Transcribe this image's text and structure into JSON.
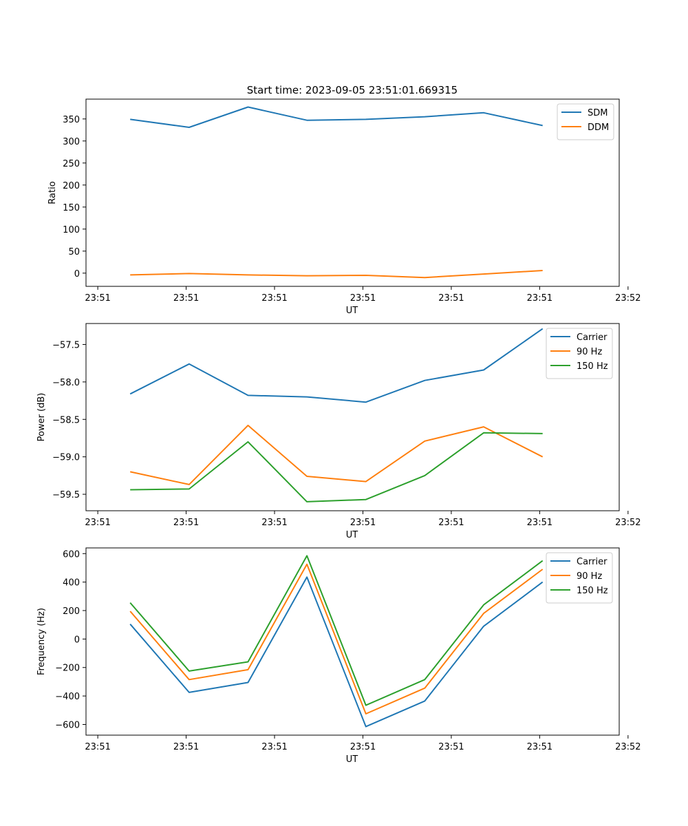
{
  "figure_title": "Start time: 2023-09-05 23:51:01.669315",
  "colors": {
    "c0": "#1f77b4",
    "c1": "#ff7f0e",
    "c2": "#2ca02c"
  },
  "chart_data": [
    {
      "type": "line",
      "title": "Start time: 2023-09-05 23:51:01.669315",
      "xlabel": "UT",
      "ylabel": "Ratio",
      "x": [
        1,
        2,
        3,
        4,
        5,
        6,
        7,
        8
      ],
      "xlim": [
        0.25,
        9.3
      ],
      "xticks": [
        0.45,
        1.95,
        3.45,
        4.95,
        6.45,
        7.95,
        9.45
      ],
      "xtick_labels": [
        "23:51",
        "23:51",
        "23:51",
        "23:51",
        "23:51",
        "23:51",
        "23:52"
      ],
      "ylim": [
        -30,
        395
      ],
      "yticks": [
        0,
        50,
        100,
        150,
        200,
        250,
        300,
        350
      ],
      "ytick_labels": [
        "0",
        "50",
        "100",
        "150",
        "200",
        "250",
        "300",
        "350"
      ],
      "legend": "top-right",
      "series": [
        {
          "name": "SDM",
          "color": "#1f77b4",
          "values": [
            349,
            331,
            377,
            347,
            349,
            355,
            364,
            335
          ]
        },
        {
          "name": "DDM",
          "color": "#ff7f0e",
          "values": [
            -4,
            -1,
            -4,
            -6,
            -5,
            -10,
            -2,
            6
          ]
        }
      ]
    },
    {
      "type": "line",
      "title": "",
      "xlabel": "UT",
      "ylabel": "Power (dB)",
      "x": [
        1,
        2,
        3,
        4,
        5,
        6,
        7,
        8
      ],
      "xlim": [
        0.25,
        9.3
      ],
      "xticks": [
        0.45,
        1.95,
        3.45,
        4.95,
        6.45,
        7.95,
        9.45
      ],
      "xtick_labels": [
        "23:51",
        "23:51",
        "23:51",
        "23:51",
        "23:51",
        "23:51",
        "23:52"
      ],
      "ylim": [
        -59.72,
        -57.22
      ],
      "yticks": [
        -59.5,
        -59.0,
        -58.5,
        -58.0,
        -57.5
      ],
      "ytick_labels": [
        "−59.5",
        "−59.0",
        "−58.5",
        "−58.0",
        "−57.5"
      ],
      "legend": "top-right",
      "series": [
        {
          "name": "Carrier",
          "color": "#1f77b4",
          "values": [
            -58.16,
            -57.76,
            -58.18,
            -58.2,
            -58.27,
            -57.98,
            -57.84,
            -57.29
          ]
        },
        {
          "name": "90 Hz",
          "color": "#ff7f0e",
          "values": [
            -59.2,
            -59.37,
            -58.58,
            -59.26,
            -59.33,
            -58.79,
            -58.6,
            -59.0
          ]
        },
        {
          "name": "150 Hz",
          "color": "#2ca02c",
          "values": [
            -59.44,
            -59.43,
            -58.8,
            -59.6,
            -59.57,
            -59.25,
            -58.68,
            -58.69
          ]
        }
      ]
    },
    {
      "type": "line",
      "title": "",
      "xlabel": "UT",
      "ylabel": "Frequency (Hz)",
      "x": [
        1,
        2,
        3,
        4,
        5,
        6,
        7,
        8
      ],
      "xlim": [
        0.25,
        9.3
      ],
      "xticks": [
        0.45,
        1.95,
        3.45,
        4.95,
        6.45,
        7.95,
        9.45
      ],
      "xtick_labels": [
        "23:51",
        "23:51",
        "23:51",
        "23:51",
        "23:51",
        "23:51",
        "23:52"
      ],
      "ylim": [
        -675,
        640
      ],
      "yticks": [
        -600,
        -400,
        -200,
        0,
        200,
        400,
        600
      ],
      "ytick_labels": [
        "−600",
        "−400",
        "−200",
        "0",
        "200",
        "400",
        "600"
      ],
      "legend": "top-right",
      "series": [
        {
          "name": "Carrier",
          "color": "#1f77b4",
          "values": [
            105,
            -375,
            -305,
            435,
            -615,
            -435,
            90,
            400
          ]
        },
        {
          "name": "90 Hz",
          "color": "#ff7f0e",
          "values": [
            195,
            -285,
            -215,
            525,
            -525,
            -345,
            180,
            490
          ]
        },
        {
          "name": "150 Hz",
          "color": "#2ca02c",
          "values": [
            255,
            -225,
            -160,
            585,
            -465,
            -285,
            240,
            550
          ]
        }
      ]
    }
  ]
}
